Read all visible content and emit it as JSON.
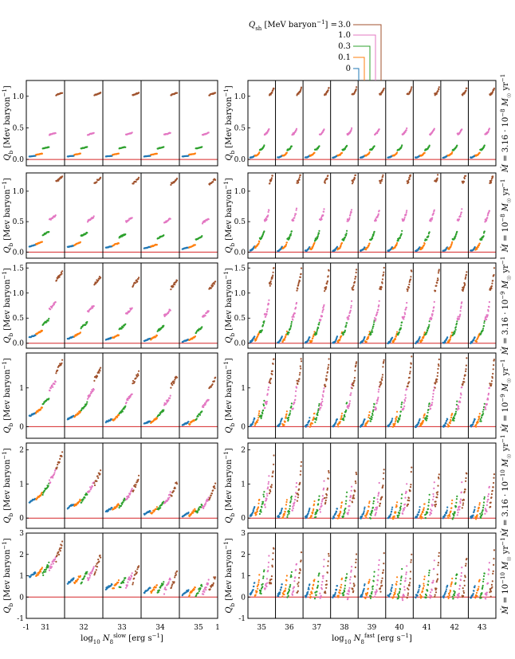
{
  "chart_data": {
    "type": "scatter",
    "legend": {
      "title": "Q_sh [MeV baryon^-1] =",
      "entries": [
        "3.0",
        "1.0",
        "0.3",
        "0.1",
        "0"
      ],
      "colors": [
        "#a0522d",
        "#e377c2",
        "#2ca02c",
        "#ff7f0e",
        "#1f77b4"
      ],
      "placement": "top-center"
    },
    "ylabel": "Q_b [Mev baryon^-1]",
    "left_group": {
      "xlabel": "log10 N_8^slow [erg s^-1]",
      "panels": [
        "31",
        "32",
        "33",
        "34",
        "35"
      ],
      "xtick_range": [
        -1,
        1
      ]
    },
    "right_group": {
      "xlabel": "log10 N_8^fast [erg s^-1]",
      "panels": [
        "35",
        "36",
        "37",
        "38",
        "39",
        "40",
        "41",
        "42",
        "43"
      ]
    },
    "rows": [
      {
        "label": "Ṁ = 3.16 · 10^-8 M☉ yr^-1",
        "yticks": [
          "0.0",
          "0.5",
          "1.0"
        ],
        "ylim": [
          -0.1,
          1.25
        ],
        "left_levels": [
          [
            0.05,
            0.05,
            0.05,
            0.05,
            0.05
          ],
          [
            0.08,
            0.08,
            0.08,
            0.08,
            0.08
          ],
          [
            0.18,
            0.18,
            0.18,
            0.18,
            0.18
          ],
          [
            0.4,
            0.4,
            0.4,
            0.4,
            0.4
          ],
          [
            1.03,
            1.03,
            1.03,
            1.03,
            1.03
          ]
        ],
        "right_levels": [
          [
            0.03,
            0.03,
            0.03,
            0.03,
            0.03,
            0.03,
            0.03,
            0.03,
            0.03
          ],
          [
            0.06,
            0.06,
            0.06,
            0.06,
            0.06,
            0.06,
            0.06,
            0.06,
            0.06
          ],
          [
            0.15,
            0.15,
            0.15,
            0.15,
            0.15,
            0.15,
            0.15,
            0.15,
            0.15
          ],
          [
            0.4,
            0.4,
            0.4,
            0.4,
            0.4,
            0.4,
            0.4,
            0.4,
            0.4
          ],
          [
            1.03,
            1.03,
            1.03,
            1.03,
            1.03,
            1.03,
            1.03,
            1.03,
            1.03
          ]
        ]
      },
      {
        "label": "Ṁ = 10^-8 M☉ yr^-1",
        "yticks": [
          "0.0",
          "0.5",
          "1.0"
        ],
        "ylim": [
          -0.1,
          1.3
        ],
        "left_levels": [
          [
            0.1,
            0.09,
            0.08,
            0.07,
            0.06
          ],
          [
            0.14,
            0.13,
            0.12,
            0.1,
            0.09
          ],
          [
            0.3,
            0.28,
            0.26,
            0.24,
            0.22
          ],
          [
            0.55,
            0.53,
            0.52,
            0.5,
            0.5
          ],
          [
            1.18,
            1.16,
            1.15,
            1.14,
            1.14
          ]
        ],
        "right_levels": [
          [
            0.03,
            0.02,
            0.02,
            0.02,
            0.02,
            0.02,
            0.02,
            0.02,
            0.02
          ],
          [
            0.08,
            0.06,
            0.05,
            0.05,
            0.05,
            0.05,
            0.05,
            0.05,
            0.05
          ],
          [
            0.22,
            0.21,
            0.2,
            0.2,
            0.2,
            0.2,
            0.2,
            0.2,
            0.2
          ],
          [
            0.52,
            0.52,
            0.52,
            0.52,
            0.52,
            0.52,
            0.52,
            0.52,
            0.52
          ],
          [
            1.15,
            1.15,
            1.15,
            1.15,
            1.15,
            1.15,
            1.15,
            1.15,
            1.15
          ]
        ]
      },
      {
        "label": "Ṁ = 3.16 · 10^-9 M☉ yr^-1",
        "yticks": [
          "0.0",
          "0.5",
          "1.0",
          "1.5"
        ],
        "ylim": [
          -0.1,
          1.6
        ],
        "left_levels": [
          [
            0.13,
            0.1,
            0.08,
            0.06,
            0.04
          ],
          [
            0.2,
            0.16,
            0.12,
            0.1,
            0.08
          ],
          [
            0.4,
            0.34,
            0.3,
            0.27,
            0.25
          ],
          [
            0.72,
            0.66,
            0.62,
            0.58,
            0.55
          ],
          [
            1.3,
            1.22,
            1.18,
            1.14,
            1.12
          ]
        ],
        "right_levels": [
          [
            0.03,
            0.02,
            0.01,
            0.01,
            0.01,
            0.01,
            0.01,
            0.01,
            0.01
          ],
          [
            0.06,
            0.04,
            0.03,
            0.03,
            0.03,
            0.03,
            0.03,
            0.03,
            0.03
          ],
          [
            0.22,
            0.2,
            0.18,
            0.18,
            0.18,
            0.18,
            0.18,
            0.18,
            0.18
          ],
          [
            0.55,
            0.5,
            0.48,
            0.48,
            0.48,
            0.48,
            0.48,
            0.48,
            0.48
          ],
          [
            1.15,
            1.1,
            1.08,
            1.08,
            1.08,
            1.08,
            1.08,
            1.08,
            1.08
          ]
        ]
      },
      {
        "label": "Ṁ = 10^-9 M☉ yr^-1",
        "yticks": [
          "0",
          "1"
        ],
        "ylim": [
          -0.3,
          1.9
        ],
        "left_levels": [
          [
            0.3,
            0.22,
            0.14,
            0.09,
            0.06
          ],
          [
            0.4,
            0.3,
            0.2,
            0.14,
            0.1
          ],
          [
            0.62,
            0.48,
            0.38,
            0.3,
            0.26
          ],
          [
            1.0,
            0.82,
            0.7,
            0.62,
            0.56
          ],
          [
            1.5,
            1.3,
            1.2,
            1.12,
            1.06
          ]
        ],
        "right_levels": [
          [
            0.03,
            0.02,
            0.01,
            0.01,
            0.01,
            0.01,
            0.01,
            0.01,
            0.01
          ],
          [
            0.06,
            0.04,
            0.03,
            0.03,
            0.03,
            0.03,
            0.03,
            0.03,
            0.03
          ],
          [
            0.22,
            0.18,
            0.17,
            0.17,
            0.17,
            0.17,
            0.17,
            0.17,
            0.17
          ],
          [
            0.55,
            0.5,
            0.48,
            0.48,
            0.48,
            0.48,
            0.48,
            0.48,
            0.48
          ],
          [
            1.15,
            1.1,
            1.08,
            1.08,
            1.08,
            1.08,
            1.08,
            1.08,
            1.08
          ]
        ]
      },
      {
        "label": "Ṁ = 3.16 · 10^-10 M☉ yr^-1",
        "yticks": [
          "0",
          "1",
          "2"
        ],
        "ylim": [
          -0.3,
          2.2
        ],
        "left_levels": [
          [
            0.5,
            0.33,
            0.22,
            0.14,
            0.08
          ],
          [
            0.6,
            0.4,
            0.28,
            0.18,
            0.12
          ],
          [
            0.8,
            0.55,
            0.4,
            0.3,
            0.22
          ],
          [
            1.15,
            0.82,
            0.62,
            0.48,
            0.38
          ],
          [
            1.6,
            1.12,
            0.92,
            0.78,
            0.7
          ]
        ],
        "right_levels": [
          [
            0.06,
            0.03,
            0.02,
            0.01,
            0.01,
            0.01,
            0.01,
            0.01,
            0.01
          ],
          [
            0.1,
            0.05,
            0.03,
            0.02,
            0.02,
            0.02,
            0.02,
            0.02,
            0.02
          ],
          [
            0.18,
            0.1,
            0.07,
            0.06,
            0.05,
            0.05,
            0.05,
            0.05,
            0.05
          ],
          [
            0.4,
            0.26,
            0.2,
            0.18,
            0.17,
            0.17,
            0.17,
            0.17,
            0.17
          ],
          [
            0.8,
            0.6,
            0.5,
            0.45,
            0.43,
            0.42,
            0.42,
            0.42,
            0.42
          ]
        ]
      },
      {
        "label": "Ṁ = 10^-10 M☉ yr^-1",
        "yticks": [
          "-1",
          "0",
          "1",
          "2",
          "3"
        ],
        "ylim": [
          -1,
          3
        ],
        "left_levels": [
          [
            1.0,
            0.7,
            0.45,
            0.28,
            0.17
          ],
          [
            1.08,
            0.76,
            0.5,
            0.31,
            0.2
          ],
          [
            1.2,
            0.84,
            0.56,
            0.36,
            0.23
          ],
          [
            1.45,
            1.0,
            0.68,
            0.44,
            0.3
          ],
          [
            2.0,
            1.4,
            0.95,
            0.65,
            0.45
          ]
        ],
        "right_levels": [
          [
            0.14,
            0.08,
            0.05,
            0.03,
            0.02,
            0.02,
            0.02,
            0.02,
            0.02
          ],
          [
            0.16,
            0.09,
            0.06,
            0.04,
            0.03,
            0.02,
            0.02,
            0.02,
            0.02
          ],
          [
            0.18,
            0.1,
            0.07,
            0.05,
            0.03,
            0.03,
            0.03,
            0.03,
            0.03
          ],
          [
            0.28,
            0.16,
            0.1,
            0.07,
            0.05,
            0.04,
            0.04,
            0.04,
            0.04
          ],
          [
            0.55,
            0.35,
            0.25,
            0.2,
            0.18,
            0.17,
            0.17,
            0.17,
            0.17
          ]
        ]
      }
    ]
  }
}
